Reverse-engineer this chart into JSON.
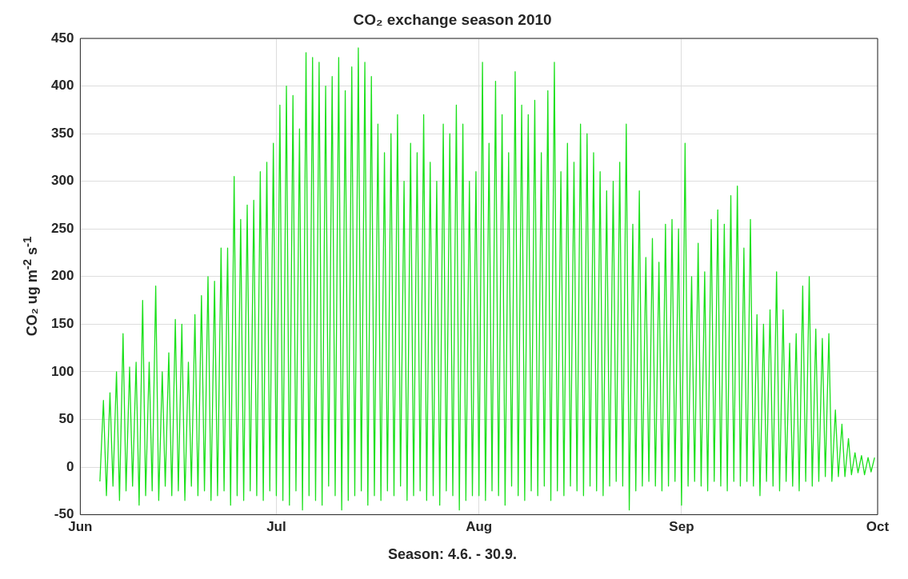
{
  "chart_data": {
    "type": "line",
    "title": "CO₂ exchange season 2010",
    "xlabel": "Season: 4.6. - 30.9.",
    "ylabel": "CO₂ ug m$^{-2}$ s$^{-1}$",
    "xlim": [
      "2010-06-01",
      "2010-10-01"
    ],
    "xticks": [
      {
        "value": "2010-06-01",
        "label": "Jun"
      },
      {
        "value": "2010-07-01",
        "label": "Jul"
      },
      {
        "value": "2010-08-01",
        "label": "Aug"
      },
      {
        "value": "2010-09-01",
        "label": "Sep"
      },
      {
        "value": "2010-10-01",
        "label": "Oct"
      }
    ],
    "ylim": [
      -50,
      450
    ],
    "yticks": [
      -50,
      0,
      50,
      100,
      150,
      200,
      250,
      300,
      350,
      400,
      450
    ],
    "grid": true,
    "marker": "none",
    "line_style": "solid",
    "series": [
      {
        "color": "#1be01b",
        "x": [
          "2010-06-04T00:00",
          "2010-06-04T13:00",
          "2010-06-05T00:00",
          "2010-06-05T13:00",
          "2010-06-06T00:00",
          "2010-06-06T13:00",
          "2010-06-07T00:00",
          "2010-06-07T13:00",
          "2010-06-08T00:00",
          "2010-06-08T13:00",
          "2010-06-09T00:00",
          "2010-06-09T13:00",
          "2010-06-10T00:00",
          "2010-06-10T13:00",
          "2010-06-11T00:00",
          "2010-06-11T13:00",
          "2010-06-12T00:00",
          "2010-06-12T13:00",
          "2010-06-13T00:00",
          "2010-06-13T13:00",
          "2010-06-14T00:00",
          "2010-06-14T13:00",
          "2010-06-15T00:00",
          "2010-06-15T13:00",
          "2010-06-16T00:00",
          "2010-06-16T13:00",
          "2010-06-17T00:00",
          "2010-06-17T13:00",
          "2010-06-18T00:00",
          "2010-06-18T13:00",
          "2010-06-19T00:00",
          "2010-06-19T13:00",
          "2010-06-20T00:00",
          "2010-06-20T13:00",
          "2010-06-21T00:00",
          "2010-06-21T13:00",
          "2010-06-22T00:00",
          "2010-06-22T13:00",
          "2010-06-23T00:00",
          "2010-06-23T13:00",
          "2010-06-24T00:00",
          "2010-06-24T13:00",
          "2010-06-25T00:00",
          "2010-06-25T13:00",
          "2010-06-26T00:00",
          "2010-06-26T13:00",
          "2010-06-27T00:00",
          "2010-06-27T13:00",
          "2010-06-28T00:00",
          "2010-06-28T13:00",
          "2010-06-29T00:00",
          "2010-06-29T13:00",
          "2010-06-30T00:00",
          "2010-06-30T13:00",
          "2010-07-01T00:00",
          "2010-07-01T13:00",
          "2010-07-02T00:00",
          "2010-07-02T13:00",
          "2010-07-03T00:00",
          "2010-07-03T13:00",
          "2010-07-04T00:00",
          "2010-07-04T13:00",
          "2010-07-05T00:00",
          "2010-07-05T13:00",
          "2010-07-06T00:00",
          "2010-07-06T13:00",
          "2010-07-07T00:00",
          "2010-07-07T13:00",
          "2010-07-08T00:00",
          "2010-07-08T13:00",
          "2010-07-09T00:00",
          "2010-07-09T13:00",
          "2010-07-10T00:00",
          "2010-07-10T13:00",
          "2010-07-11T00:00",
          "2010-07-11T13:00",
          "2010-07-12T00:00",
          "2010-07-12T13:00",
          "2010-07-13T00:00",
          "2010-07-13T13:00",
          "2010-07-14T00:00",
          "2010-07-14T13:00",
          "2010-07-15T00:00",
          "2010-07-15T13:00",
          "2010-07-16T00:00",
          "2010-07-16T13:00",
          "2010-07-17T00:00",
          "2010-07-17T13:00",
          "2010-07-18T00:00",
          "2010-07-18T13:00",
          "2010-07-19T00:00",
          "2010-07-19T13:00",
          "2010-07-20T00:00",
          "2010-07-20T13:00",
          "2010-07-21T00:00",
          "2010-07-21T13:00",
          "2010-07-22T00:00",
          "2010-07-22T13:00",
          "2010-07-23T00:00",
          "2010-07-23T13:00",
          "2010-07-24T00:00",
          "2010-07-24T13:00",
          "2010-07-25T00:00",
          "2010-07-25T13:00",
          "2010-07-26T00:00",
          "2010-07-26T13:00",
          "2010-07-27T00:00",
          "2010-07-27T13:00",
          "2010-07-28T00:00",
          "2010-07-28T13:00",
          "2010-07-29T00:00",
          "2010-07-29T13:00",
          "2010-07-30T00:00",
          "2010-07-30T13:00",
          "2010-07-31T00:00",
          "2010-07-31T13:00",
          "2010-08-01T00:00",
          "2010-08-01T13:00",
          "2010-08-02T00:00",
          "2010-08-02T13:00",
          "2010-08-03T00:00",
          "2010-08-03T13:00",
          "2010-08-04T00:00",
          "2010-08-04T13:00",
          "2010-08-05T00:00",
          "2010-08-05T13:00",
          "2010-08-06T00:00",
          "2010-08-06T13:00",
          "2010-08-07T00:00",
          "2010-08-07T13:00",
          "2010-08-08T00:00",
          "2010-08-08T13:00",
          "2010-08-09T00:00",
          "2010-08-09T13:00",
          "2010-08-10T00:00",
          "2010-08-10T13:00",
          "2010-08-11T00:00",
          "2010-08-11T13:00",
          "2010-08-12T00:00",
          "2010-08-12T13:00",
          "2010-08-13T00:00",
          "2010-08-13T13:00",
          "2010-08-14T00:00",
          "2010-08-14T13:00",
          "2010-08-15T00:00",
          "2010-08-15T13:00",
          "2010-08-16T00:00",
          "2010-08-16T13:00",
          "2010-08-17T00:00",
          "2010-08-17T13:00",
          "2010-08-18T00:00",
          "2010-08-18T13:00",
          "2010-08-19T00:00",
          "2010-08-19T13:00",
          "2010-08-20T00:00",
          "2010-08-20T13:00",
          "2010-08-21T00:00",
          "2010-08-21T13:00",
          "2010-08-22T00:00",
          "2010-08-22T13:00",
          "2010-08-23T00:00",
          "2010-08-23T13:00",
          "2010-08-24T00:00",
          "2010-08-24T13:00",
          "2010-08-25T00:00",
          "2010-08-25T13:00",
          "2010-08-26T00:00",
          "2010-08-26T13:00",
          "2010-08-27T00:00",
          "2010-08-27T13:00",
          "2010-08-28T00:00",
          "2010-08-28T13:00",
          "2010-08-29T00:00",
          "2010-08-29T13:00",
          "2010-08-30T00:00",
          "2010-08-30T13:00",
          "2010-08-31T00:00",
          "2010-08-31T13:00",
          "2010-09-01T00:00",
          "2010-09-01T13:00",
          "2010-09-02T00:00",
          "2010-09-02T13:00",
          "2010-09-03T00:00",
          "2010-09-03T13:00",
          "2010-09-04T00:00",
          "2010-09-04T13:00",
          "2010-09-05T00:00",
          "2010-09-05T13:00",
          "2010-09-06T00:00",
          "2010-09-06T13:00",
          "2010-09-07T00:00",
          "2010-09-07T13:00",
          "2010-09-08T00:00",
          "2010-09-08T13:00",
          "2010-09-09T00:00",
          "2010-09-09T13:00",
          "2010-09-10T00:00",
          "2010-09-10T13:00",
          "2010-09-11T00:00",
          "2010-09-11T13:00",
          "2010-09-12T00:00",
          "2010-09-12T13:00",
          "2010-09-13T00:00",
          "2010-09-13T13:00",
          "2010-09-14T00:00",
          "2010-09-14T13:00",
          "2010-09-15T00:00",
          "2010-09-15T13:00",
          "2010-09-16T00:00",
          "2010-09-16T13:00",
          "2010-09-17T00:00",
          "2010-09-17T13:00",
          "2010-09-18T00:00",
          "2010-09-18T13:00",
          "2010-09-19T00:00",
          "2010-09-19T13:00",
          "2010-09-20T00:00",
          "2010-09-20T13:00",
          "2010-09-21T00:00",
          "2010-09-21T13:00",
          "2010-09-22T00:00",
          "2010-09-22T13:00",
          "2010-09-23T00:00",
          "2010-09-23T13:00",
          "2010-09-24T00:00",
          "2010-09-24T13:00",
          "2010-09-25T00:00",
          "2010-09-25T13:00",
          "2010-09-26T00:00",
          "2010-09-26T13:00",
          "2010-09-27T00:00",
          "2010-09-27T13:00",
          "2010-09-28T00:00",
          "2010-09-28T13:00",
          "2010-09-29T00:00",
          "2010-09-29T13:00",
          "2010-09-30T00:00",
          "2010-09-30T13:00"
        ],
        "values": [
          -15,
          70,
          -30,
          78,
          -20,
          100,
          -35,
          140,
          -25,
          105,
          -20,
          110,
          -40,
          175,
          -30,
          110,
          -25,
          190,
          -35,
          100,
          -20,
          120,
          -30,
          155,
          -25,
          150,
          -35,
          110,
          -20,
          160,
          -30,
          180,
          -25,
          200,
          -35,
          195,
          -30,
          230,
          -25,
          230,
          -40,
          305,
          -30,
          260,
          -35,
          275,
          -25,
          280,
          -30,
          310,
          -35,
          320,
          -25,
          340,
          -30,
          380,
          -35,
          400,
          -40,
          390,
          -25,
          355,
          -45,
          435,
          -30,
          430,
          -35,
          425,
          -40,
          400,
          -20,
          410,
          -30,
          430,
          -45,
          395,
          -35,
          420,
          -30,
          440,
          -25,
          425,
          -40,
          410,
          -30,
          360,
          -35,
          330,
          -25,
          350,
          -30,
          370,
          -20,
          300,
          -35,
          340,
          -30,
          330,
          -25,
          370,
          -35,
          320,
          -30,
          300,
          -40,
          360,
          -25,
          350,
          -30,
          380,
          -45,
          360,
          -35,
          300,
          -30,
          310,
          -30,
          425,
          -35,
          340,
          -25,
          405,
          -30,
          370,
          -40,
          330,
          -20,
          415,
          -30,
          380,
          -35,
          370,
          -25,
          385,
          -30,
          330,
          -20,
          395,
          -35,
          425,
          -25,
          310,
          -30,
          340,
          -20,
          320,
          -25,
          360,
          -30,
          350,
          -20,
          330,
          -25,
          310,
          -30,
          290,
          -20,
          300,
          -15,
          320,
          -20,
          360,
          -45,
          255,
          -25,
          290,
          -20,
          220,
          -15,
          240,
          -20,
          215,
          -25,
          255,
          -20,
          260,
          -15,
          250,
          -40,
          340,
          -20,
          200,
          -15,
          235,
          -20,
          205,
          -25,
          260,
          -15,
          270,
          -20,
          255,
          -25,
          285,
          -15,
          295,
          -20,
          230,
          -15,
          260,
          -20,
          160,
          -30,
          150,
          -15,
          165,
          -20,
          205,
          -25,
          165,
          -15,
          130,
          -20,
          140,
          -25,
          190,
          -15,
          200,
          -20,
          145,
          -15,
          135,
          -10,
          140,
          -15,
          60,
          -10,
          45,
          -10,
          30,
          -8,
          15,
          -6,
          12,
          -8,
          10,
          -5,
          10
        ]
      }
    ]
  }
}
